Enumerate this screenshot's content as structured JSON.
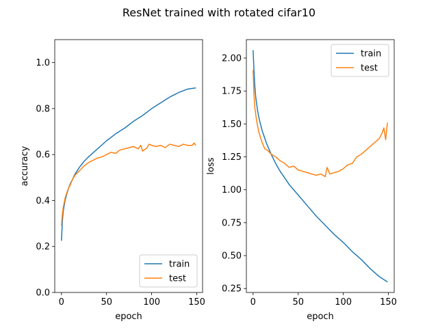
{
  "figure": {
    "suptitle": "ResNet trained with rotated cifar10"
  },
  "colors": {
    "train": "#1f77b4",
    "test": "#ff7f0e"
  },
  "chart_data": [
    {
      "type": "line",
      "xlabel": "epoch",
      "ylabel": "accuracy",
      "xlim": [
        -7.45,
        156.45
      ],
      "ylim": [
        0.0,
        1.1
      ],
      "xticks": [
        0,
        50,
        100,
        150
      ],
      "xtick_labels": [
        "0",
        "50",
        "100",
        "150"
      ],
      "yticks": [
        0.0,
        0.2,
        0.4,
        0.6,
        0.8,
        1.0
      ],
      "ytick_labels": [
        "0.0",
        "0.2",
        "0.4",
        "0.6",
        "0.8",
        "1.0"
      ],
      "legend": {
        "placement": "lower-right",
        "entries": [
          "train",
          "test"
        ]
      },
      "grid": false,
      "series": [
        {
          "name": "train",
          "x": [
            0,
            1,
            2,
            4,
            6,
            8,
            10,
            12,
            15,
            20,
            25,
            30,
            40,
            50,
            60,
            70,
            80,
            90,
            100,
            110,
            120,
            130,
            140,
            149
          ],
          "y": [
            0.225,
            0.31,
            0.355,
            0.4,
            0.43,
            0.455,
            0.475,
            0.49,
            0.515,
            0.545,
            0.57,
            0.59,
            0.625,
            0.66,
            0.69,
            0.715,
            0.745,
            0.77,
            0.8,
            0.825,
            0.85,
            0.87,
            0.885,
            0.89
          ]
        },
        {
          "name": "test",
          "x": [
            0,
            1,
            2,
            4,
            6,
            8,
            10,
            12,
            15,
            20,
            25,
            30,
            35,
            40,
            45,
            50,
            55,
            60,
            65,
            70,
            75,
            80,
            85,
            88,
            90,
            95,
            97,
            100,
            105,
            110,
            115,
            120,
            125,
            130,
            135,
            140,
            145,
            147,
            149
          ],
          "y": [
            0.29,
            0.34,
            0.37,
            0.41,
            0.435,
            0.455,
            0.47,
            0.49,
            0.51,
            0.53,
            0.55,
            0.565,
            0.575,
            0.585,
            0.59,
            0.6,
            0.61,
            0.605,
            0.62,
            0.625,
            0.63,
            0.635,
            0.625,
            0.64,
            0.615,
            0.63,
            0.645,
            0.64,
            0.635,
            0.64,
            0.63,
            0.645,
            0.64,
            0.635,
            0.645,
            0.64,
            0.64,
            0.65,
            0.64
          ]
        }
      ]
    },
    {
      "type": "line",
      "xlabel": "epoch",
      "ylabel": "loss",
      "xlim": [
        -7.45,
        156.45
      ],
      "ylim": [
        0.22,
        2.14
      ],
      "xticks": [
        0,
        50,
        100,
        150
      ],
      "xtick_labels": [
        "0",
        "50",
        "100",
        "150"
      ],
      "yticks": [
        0.25,
        0.5,
        0.75,
        1.0,
        1.25,
        1.5,
        1.75,
        2.0
      ],
      "ytick_labels": [
        "0.25",
        "0.50",
        "0.75",
        "1.00",
        "1.25",
        "1.50",
        "1.75",
        "2.00"
      ],
      "legend": {
        "placement": "upper-right",
        "entries": [
          "train",
          "test"
        ]
      },
      "grid": false,
      "series": [
        {
          "name": "train",
          "x": [
            0,
            1,
            2,
            3,
            5,
            7,
            10,
            15,
            20,
            25,
            30,
            40,
            50,
            60,
            70,
            80,
            90,
            100,
            110,
            120,
            130,
            140,
            149
          ],
          "y": [
            2.06,
            1.9,
            1.78,
            1.7,
            1.6,
            1.53,
            1.45,
            1.35,
            1.27,
            1.2,
            1.14,
            1.04,
            0.96,
            0.88,
            0.8,
            0.73,
            0.66,
            0.6,
            0.53,
            0.47,
            0.4,
            0.34,
            0.3
          ]
        },
        {
          "name": "test",
          "x": [
            0,
            1,
            2,
            4,
            6,
            8,
            10,
            13,
            16,
            20,
            25,
            30,
            35,
            40,
            45,
            50,
            55,
            60,
            65,
            70,
            75,
            80,
            82,
            85,
            90,
            95,
            100,
            105,
            110,
            115,
            120,
            125,
            130,
            135,
            140,
            143,
            145,
            147,
            148,
            149
          ],
          "y": [
            1.91,
            1.72,
            1.62,
            1.52,
            1.45,
            1.4,
            1.36,
            1.31,
            1.3,
            1.27,
            1.25,
            1.22,
            1.2,
            1.17,
            1.18,
            1.15,
            1.14,
            1.13,
            1.12,
            1.11,
            1.12,
            1.1,
            1.17,
            1.12,
            1.13,
            1.14,
            1.16,
            1.19,
            1.2,
            1.25,
            1.27,
            1.3,
            1.33,
            1.36,
            1.39,
            1.43,
            1.47,
            1.38,
            1.45,
            1.51
          ]
        }
      ]
    }
  ]
}
